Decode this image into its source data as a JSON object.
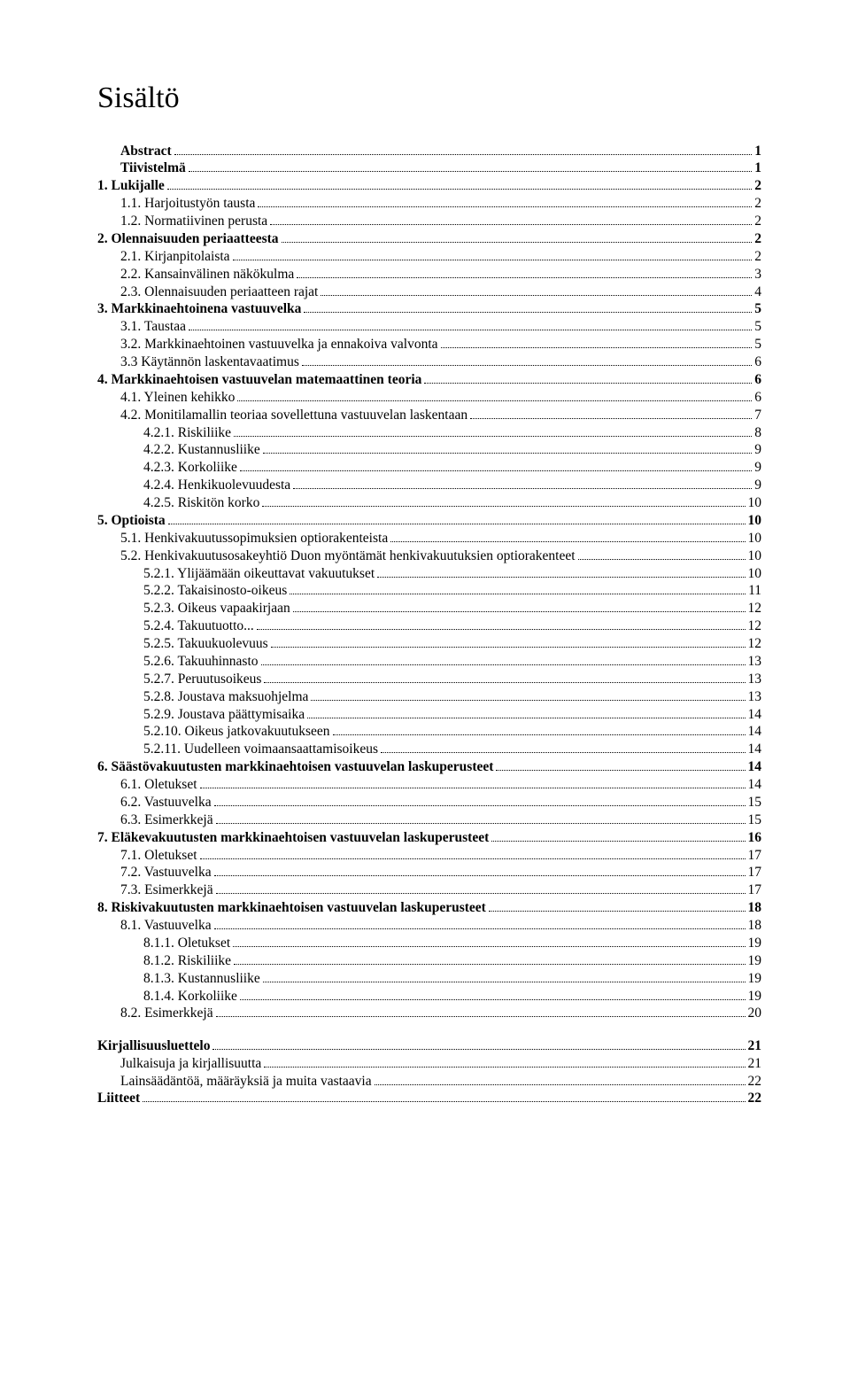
{
  "title": "Sisältö",
  "entries": [
    {
      "label": "Abstract",
      "page": "1",
      "indent": 1,
      "bold": true
    },
    {
      "label": "Tiivistelmä",
      "page": "1",
      "indent": 1,
      "bold": true
    },
    {
      "label": "1.   Lukijalle",
      "page": "2",
      "indent": 0,
      "bold": true
    },
    {
      "label": "1.1.   Harjoitustyön tausta",
      "page": "2",
      "indent": 1,
      "bold": false
    },
    {
      "label": "1.2.   Normatiivinen perusta",
      "page": "2",
      "indent": 1,
      "bold": false
    },
    {
      "label": "2.   Olennaisuuden periaatteesta",
      "page": "2",
      "indent": 0,
      "bold": true
    },
    {
      "label": "2.1.   Kirjanpitolaista",
      "page": "2",
      "indent": 1,
      "bold": false
    },
    {
      "label": "2.2.   Kansainvälinen näkökulma",
      "page": "3",
      "indent": 1,
      "bold": false
    },
    {
      "label": "2.3.   Olennaisuuden periaatteen rajat",
      "page": "4",
      "indent": 1,
      "bold": false
    },
    {
      "label": "3.   Markkinaehtoinena vastuuvelka",
      "page": "5",
      "indent": 0,
      "bold": true
    },
    {
      "label": "3.1.   Taustaa",
      "page": "5",
      "indent": 1,
      "bold": false
    },
    {
      "label": "3.2.   Markkinaehtoinen vastuuvelka ja ennakoiva valvonta",
      "page": "5",
      "indent": 1,
      "bold": false
    },
    {
      "label": "3.3   Käytännön laskentavaatimus",
      "page": "6",
      "indent": 1,
      "bold": false
    },
    {
      "label": "4.   Markkinaehtoisen vastuuvelan matemaattinen teoria",
      "page": "6",
      "indent": 0,
      "bold": true
    },
    {
      "label": "4.1.   Yleinen kehikko",
      "page": "6",
      "indent": 1,
      "bold": false
    },
    {
      "label": "4.2.   Monitilamallin teoriaa sovellettuna vastuuvelan laskentaan",
      "page": "7",
      "indent": 1,
      "bold": false
    },
    {
      "label": "4.2.1.   Riskiliike",
      "page": "8",
      "indent": 2,
      "bold": false
    },
    {
      "label": "4.2.2.   Kustannusliike",
      "page": "9",
      "indent": 2,
      "bold": false
    },
    {
      "label": "4.2.3.   Korkoliike",
      "page": "9",
      "indent": 2,
      "bold": false
    },
    {
      "label": "4.2.4.   Henkikuolevuudesta",
      "page": "9",
      "indent": 2,
      "bold": false
    },
    {
      "label": "4.2.5.   Riskitön korko",
      "page": "10",
      "indent": 2,
      "bold": false
    },
    {
      "label": "5.   Optioista",
      "page": "10",
      "indent": 0,
      "bold": true
    },
    {
      "label": "5.1. Henkivakuutussopimuksien optiorakenteista",
      "page": "10",
      "indent": 1,
      "bold": false
    },
    {
      "label": "5.2. Henkivakuutusosakeyhtiö Duon myöntämät henkivakuutuksien optiorakenteet",
      "page": "10",
      "indent": 1,
      "bold": false
    },
    {
      "label": "5.2.1.   Ylijäämään oikeuttavat vakuutukset",
      "page": "10",
      "indent": 2,
      "bold": false
    },
    {
      "label": "5.2.2.   Takaisinosto-oikeus",
      "page": "11",
      "indent": 2,
      "bold": false
    },
    {
      "label": "5.2.3.   Oikeus vapaakirjaan",
      "page": "12",
      "indent": 2,
      "bold": false
    },
    {
      "label": "5.2.4.   Takuutuotto...",
      "page": "12",
      "indent": 2,
      "bold": false
    },
    {
      "label": "5.2.5.   Takuukuolevuus",
      "page": "12",
      "indent": 2,
      "bold": false
    },
    {
      "label": "5.2.6.   Takuuhinnasto",
      "page": "13",
      "indent": 2,
      "bold": false
    },
    {
      "label": "5.2.7.   Peruutusoikeus",
      "page": "13",
      "indent": 2,
      "bold": false
    },
    {
      "label": "5.2.8.   Joustava maksuohjelma",
      "page": "13",
      "indent": 2,
      "bold": false
    },
    {
      "label": "5.2.9.   Joustava päättymisaika",
      "page": "14",
      "indent": 2,
      "bold": false
    },
    {
      "label": "5.2.10.   Oikeus jatkovakuutukseen",
      "page": "14",
      "indent": 2,
      "bold": false
    },
    {
      "label": "5.2.11.   Uudelleen voimaansaattamisoikeus",
      "page": "14",
      "indent": 2,
      "bold": false
    },
    {
      "label": "6.   Säästövakuutusten markkinaehtoisen vastuuvelan laskuperusteet",
      "page": "14",
      "indent": 0,
      "bold": true
    },
    {
      "label": "6.1.   Oletukset",
      "page": "14",
      "indent": 1,
      "bold": false
    },
    {
      "label": "6.2.   Vastuuvelka",
      "page": "15",
      "indent": 1,
      "bold": false
    },
    {
      "label": "6.3.   Esimerkkejä",
      "page": "15",
      "indent": 1,
      "bold": false
    },
    {
      "label": "7.   Eläkevakuutusten markkinaehtoisen vastuuvelan laskuperusteet",
      "page": "16",
      "indent": 0,
      "bold": true
    },
    {
      "label": "7.1.   Oletukset",
      "page": "17",
      "indent": 1,
      "bold": false
    },
    {
      "label": "7.2.   Vastuuvelka",
      "page": "17",
      "indent": 1,
      "bold": false
    },
    {
      "label": "7.3.   Esimerkkejä",
      "page": "17",
      "indent": 1,
      "bold": false
    },
    {
      "label": "8.   Riskivakuutusten markkinaehtoisen vastuuvelan laskuperusteet",
      "page": "18",
      "indent": 0,
      "bold": true
    },
    {
      "label": "8.1.   Vastuuvelka",
      "page": "18",
      "indent": 1,
      "bold": false
    },
    {
      "label": "8.1.1.   Oletukset",
      "page": "19",
      "indent": 2,
      "bold": false
    },
    {
      "label": "8.1.2.   Riskiliike",
      "page": "19",
      "indent": 2,
      "bold": false
    },
    {
      "label": "8.1.3.   Kustannusliike",
      "page": "19",
      "indent": 2,
      "bold": false
    },
    {
      "label": "8.1.4.   Korkoliike",
      "page": "19",
      "indent": 2,
      "bold": false
    },
    {
      "label": "8.2.   Esimerkkejä",
      "page": "20",
      "indent": 1,
      "bold": false
    }
  ],
  "entries2": [
    {
      "label": "Kirjallisuusluettelo",
      "page": "21",
      "indent": 0,
      "bold": true
    },
    {
      "label": "Julkaisuja ja kirjallisuutta",
      "page": "21",
      "indent": 1,
      "bold": false
    },
    {
      "label": "Lainsäädäntöä, määräyksiä ja muita vastaavia",
      "page": "22",
      "indent": 1,
      "bold": false
    },
    {
      "label": "Liitteet",
      "page": "22",
      "indent": 0,
      "bold": true
    }
  ]
}
